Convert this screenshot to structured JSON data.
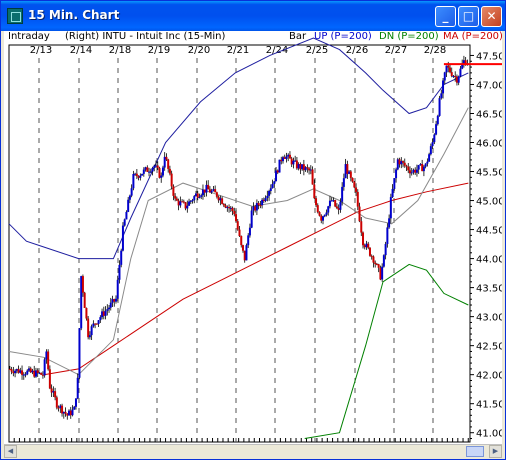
{
  "window": {
    "title": "15 Min. Chart",
    "icon": "chart-app-icon",
    "buttons": {
      "minimize": "_",
      "maximize": "□",
      "close": "✕"
    }
  },
  "header": {
    "left": "Intraday",
    "security": "(Right)  INTU - Intuit Inc   (15-Min)",
    "bar": "Bar",
    "up": "UP (P=200)",
    "dn": "DN (P=200)",
    "ma": "MA (P=200)"
  },
  "colors": {
    "up_band": "#1f1fa0",
    "dn_band": "#008000",
    "ma": "#cc0000",
    "up_bar": "#0000cc",
    "down_bar": "#cc0000",
    "inner_ma": "#8a8a8a",
    "last_price_line": "#ff0000"
  },
  "scrollbar": {
    "left_arrow": "◀",
    "right_arrow": "▶"
  },
  "chart_data": {
    "type": "candlestick",
    "dates": [
      "2/13",
      "2/14",
      "2/18",
      "2/19",
      "2/20",
      "2/21",
      "2/24",
      "2/25",
      "2/26",
      "2/27",
      "2/28"
    ],
    "y_ticks": [
      "47.50",
      "47.00",
      "46.50",
      "46.00",
      "45.50",
      "45.00",
      "44.50",
      "44.00",
      "43.50",
      "43.00",
      "42.50",
      "42.00",
      "41.50",
      "41.00"
    ],
    "ylim": [
      40.9,
      47.7
    ],
    "grid": "vertical-dashed-at-day-breaks",
    "price_path": [
      [
        0,
        42.1
      ],
      [
        20,
        42.0
      ],
      [
        22,
        42.4
      ],
      [
        24,
        41.8
      ],
      [
        28,
        41.5
      ],
      [
        34,
        41.3
      ],
      [
        38,
        41.4
      ],
      [
        40,
        41.9
      ],
      [
        42,
        43.7
      ],
      [
        46,
        42.7
      ],
      [
        50,
        42.9
      ],
      [
        56,
        43.1
      ],
      [
        62,
        43.3
      ],
      [
        66,
        44.5
      ],
      [
        72,
        45.4
      ],
      [
        78,
        45.5
      ],
      [
        84,
        45.6
      ],
      [
        88,
        45.4
      ],
      [
        90,
        45.8
      ],
      [
        96,
        45.0
      ],
      [
        102,
        44.9
      ],
      [
        108,
        45.1
      ],
      [
        114,
        45.2
      ],
      [
        120,
        45.1
      ],
      [
        126,
        44.9
      ],
      [
        130,
        44.8
      ],
      [
        134,
        44.2
      ],
      [
        136,
        44.0
      ],
      [
        140,
        44.8
      ],
      [
        146,
        45.0
      ],
      [
        152,
        45.3
      ],
      [
        158,
        45.8
      ],
      [
        166,
        45.6
      ],
      [
        174,
        45.5
      ],
      [
        176,
        45.0
      ],
      [
        180,
        44.7
      ],
      [
        186,
        45.0
      ],
      [
        190,
        44.8
      ],
      [
        194,
        45.6
      ],
      [
        200,
        45.1
      ],
      [
        204,
        44.3
      ],
      [
        210,
        44.0
      ],
      [
        214,
        43.7
      ],
      [
        216,
        44.0
      ],
      [
        220,
        45.0
      ],
      [
        224,
        45.7
      ],
      [
        232,
        45.5
      ],
      [
        240,
        45.6
      ],
      [
        244,
        46.0
      ],
      [
        248,
        46.7
      ],
      [
        252,
        47.3
      ],
      [
        258,
        47.1
      ],
      [
        262,
        47.4
      ]
    ],
    "series": [
      {
        "name": "UP (P=200)",
        "values": [
          [
            0,
            44.6
          ],
          [
            10,
            44.3
          ],
          [
            20,
            44.2
          ],
          [
            40,
            44.0
          ],
          [
            60,
            44.0
          ],
          [
            70,
            44.7
          ],
          [
            90,
            46.0
          ],
          [
            110,
            46.7
          ],
          [
            130,
            47.2
          ],
          [
            150,
            47.5
          ],
          [
            175,
            47.8
          ],
          [
            190,
            47.6
          ],
          [
            205,
            47.2
          ],
          [
            215,
            46.9
          ],
          [
            230,
            46.5
          ],
          [
            240,
            46.6
          ],
          [
            250,
            47.0
          ],
          [
            264,
            47.2
          ]
        ]
      },
      {
        "name": "DN (P=200)",
        "values": [
          [
            170,
            40.9
          ],
          [
            190,
            41.0
          ],
          [
            205,
            42.5
          ],
          [
            215,
            43.6
          ],
          [
            230,
            43.9
          ],
          [
            240,
            43.8
          ],
          [
            250,
            43.4
          ],
          [
            264,
            43.2
          ]
        ]
      },
      {
        "name": "MA (P=200)",
        "values": [
          [
            20,
            42.0
          ],
          [
            40,
            42.1
          ],
          [
            60,
            42.5
          ],
          [
            80,
            42.9
          ],
          [
            100,
            43.3
          ],
          [
            120,
            43.6
          ],
          [
            140,
            43.9
          ],
          [
            160,
            44.2
          ],
          [
            180,
            44.5
          ],
          [
            200,
            44.8
          ],
          [
            220,
            45.0
          ],
          [
            240,
            45.15
          ],
          [
            264,
            45.3
          ]
        ]
      },
      {
        "name": "",
        "values": [
          [
            0,
            42.4
          ],
          [
            20,
            42.3
          ],
          [
            40,
            42.0
          ],
          [
            60,
            42.6
          ],
          [
            70,
            44.0
          ],
          [
            80,
            45.0
          ],
          [
            100,
            45.3
          ],
          [
            120,
            45.1
          ],
          [
            140,
            44.9
          ],
          [
            160,
            45.0
          ],
          [
            175,
            45.2
          ],
          [
            190,
            45.0
          ],
          [
            205,
            44.7
          ],
          [
            220,
            44.6
          ],
          [
            235,
            45.0
          ],
          [
            250,
            45.8
          ],
          [
            264,
            46.6
          ]
        ]
      }
    ]
  }
}
